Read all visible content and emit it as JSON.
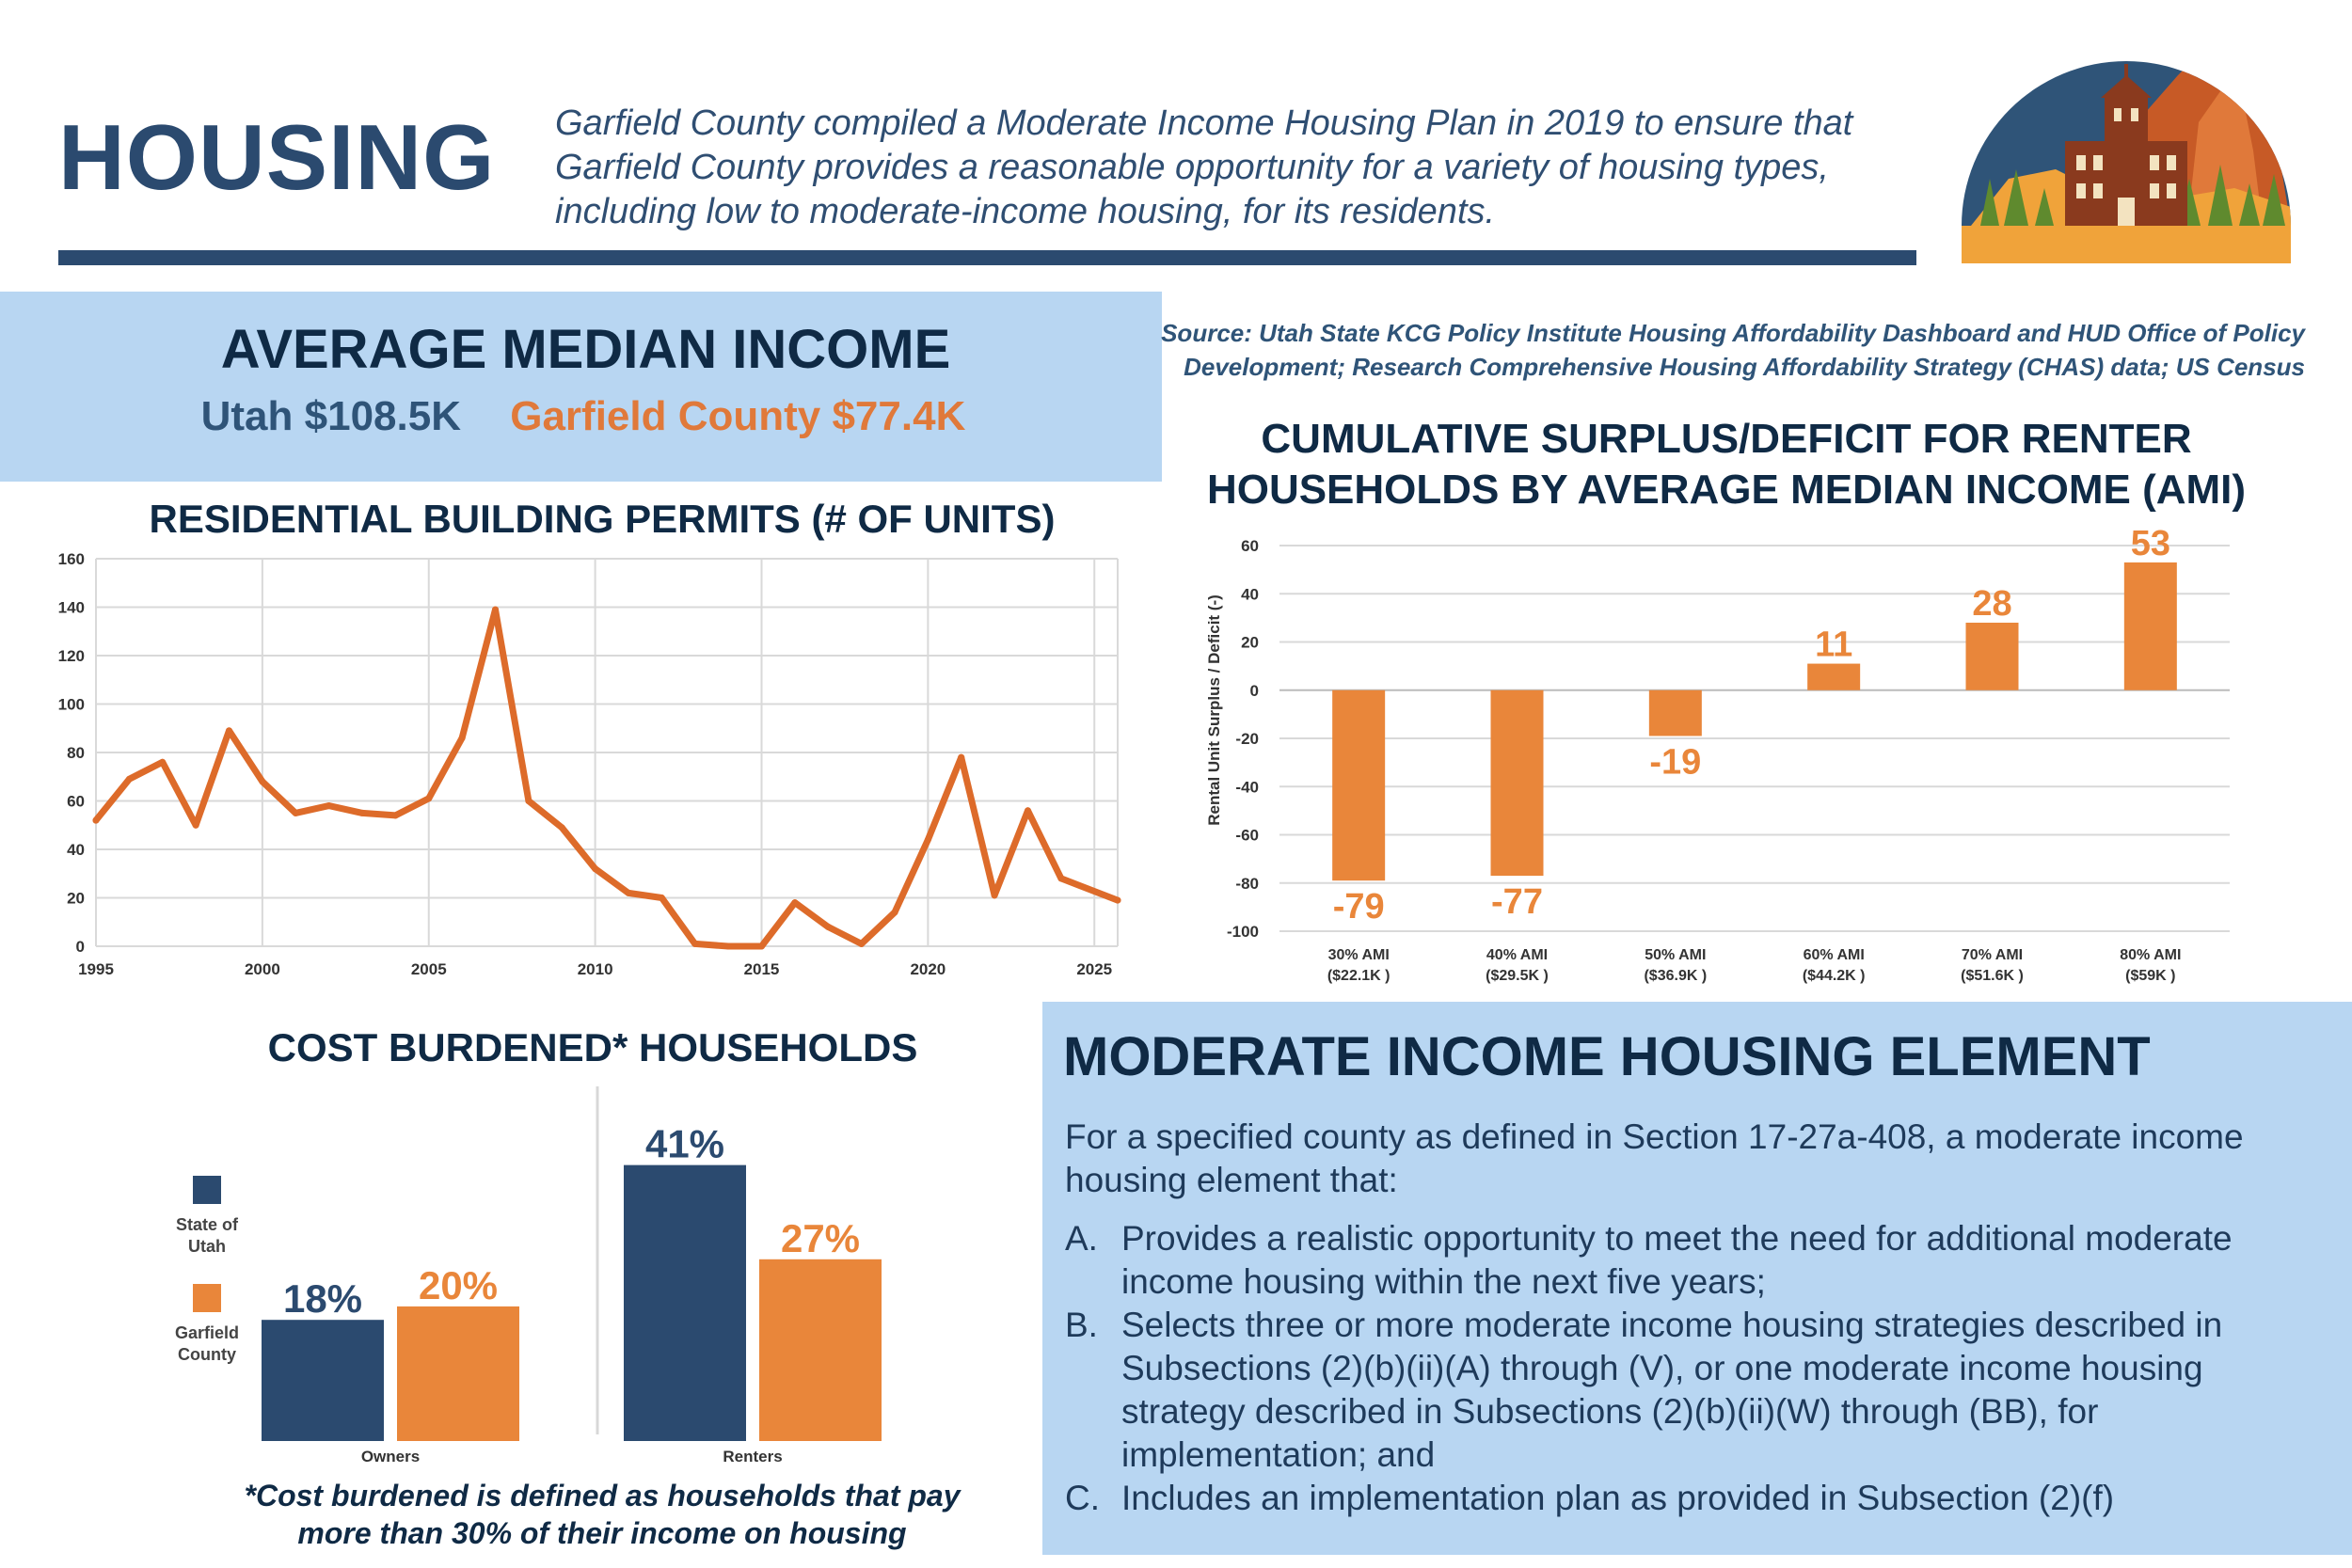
{
  "header": {
    "title": "HOUSING",
    "intro": "Garfield County compiled a Moderate Income Housing Plan in 2019 to ensure that Garfield County provides a reasonable opportunity for a variety of housing types, including low to moderate-income housing, for its residents."
  },
  "ami": {
    "title": "AVERAGE MEDIAN INCOME",
    "utah": "Utah $108.5K",
    "garfield": "Garfield County $77.4K"
  },
  "source": {
    "line1": "Source: Utah State KCG Policy Institute Housing Affordability Dashboard and HUD Office of Policy",
    "line2": "Development; Research Comprehensive Housing Affordability Strategy (CHAS) data; US Census"
  },
  "colors": {
    "navy": "#2b4a6f",
    "orange": "#e9863a",
    "line_orange": "#dd6b2a",
    "light_blue": "#b8d6f2"
  },
  "chart_data": [
    {
      "type": "line",
      "title": "RESIDENTIAL BUILDING PERMITS (# OF UNITS)",
      "xlabel": "",
      "ylabel": "",
      "xlim": [
        1995,
        2025.7
      ],
      "ylim": [
        0,
        160
      ],
      "x_ticks": [
        "1995",
        "2000",
        "2005",
        "2010",
        "2015",
        "2020",
        "2025"
      ],
      "y_ticks": [
        "0",
        "20",
        "40",
        "60",
        "80",
        "100",
        "120",
        "140",
        "160"
      ],
      "grid": true,
      "x": [
        1995,
        1996,
        1997,
        1998,
        1999,
        2000,
        2001,
        2002,
        2003,
        2004,
        2005,
        2006,
        2007,
        2008,
        2009,
        2010,
        2011,
        2012,
        2013,
        2014,
        2015,
        2016,
        2017,
        2018,
        2019,
        2020,
        2021,
        2022,
        2023,
        2024,
        2025.7
      ],
      "values": [
        52,
        69,
        76,
        50,
        89,
        68,
        55,
        58,
        55,
        54,
        61,
        86,
        139,
        60,
        49,
        32,
        22,
        20,
        1,
        0,
        0,
        18,
        8,
        1,
        14,
        44,
        78,
        21,
        56,
        28,
        19
      ]
    },
    {
      "type": "bar",
      "title": "CUMULATIVE SURPLUS/DEFICIT FOR RENTER HOUSEHOLDS  BY AVERAGE MEDIAN INCOME (AMI)",
      "ylabel": "Rental Unit Surplus  / Deficit (-)",
      "ylim": [
        -100,
        60
      ],
      "y_ticks": [
        "-100",
        "-80",
        "-60",
        "-40",
        "-20",
        "0",
        "20",
        "40",
        "60"
      ],
      "grid": true,
      "categories": [
        "30% AMI",
        "40% AMI",
        "50% AMI",
        "60% AMI",
        "70% AMI",
        "80% AMI"
      ],
      "sublabels": [
        "($22.1K )",
        "($29.5K )",
        "($36.9K )",
        "($44.2K )",
        "($51.6K )",
        "($59K )"
      ],
      "values": [
        -79,
        -77,
        -19,
        11,
        28,
        53
      ],
      "data_labels": [
        "-79",
        "-77",
        "-19",
        "11",
        "28",
        "53"
      ]
    },
    {
      "type": "bar",
      "title": "COST BURDENED* HOUSEHOLDS",
      "categories": [
        "Owners",
        "Renters"
      ],
      "ylim": [
        0,
        45
      ],
      "legend": "left",
      "series": [
        {
          "name": "State of Utah",
          "values": [
            18,
            41
          ],
          "labels": [
            "18%",
            "41%"
          ]
        },
        {
          "name": "Garfield County",
          "values": [
            20,
            27
          ],
          "labels": [
            "20%",
            "27%"
          ]
        }
      ],
      "legend_labels": [
        [
          "State of",
          "Utah"
        ],
        [
          "Garfield",
          "County"
        ]
      ],
      "footnote": [
        "*Cost burdened is defined as households that pay",
        "more than 30% of their income on housing"
      ]
    }
  ],
  "mih": {
    "title": "MODERATE INCOME HOUSING ELEMENT",
    "intro": "For a specified county as defined in Section 17-27a-408, a moderate income housing element that:",
    "items": [
      {
        "mark": "A.",
        "text": "Provides a realistic opportunity to meet the need for additional moderate income housing within the next five years;"
      },
      {
        "mark": "B.",
        "text": "Selects three or more moderate income housing strategies described in Subsections (2)(b)(ii)(A) through (V), or one moderate income housing strategy described in Subsections (2)(b)(ii)(W) through (BB), for implementation; and"
      },
      {
        "mark": "C.",
        "text": "Includes an implementation plan as provided in Subsection (2)(f)"
      }
    ]
  }
}
